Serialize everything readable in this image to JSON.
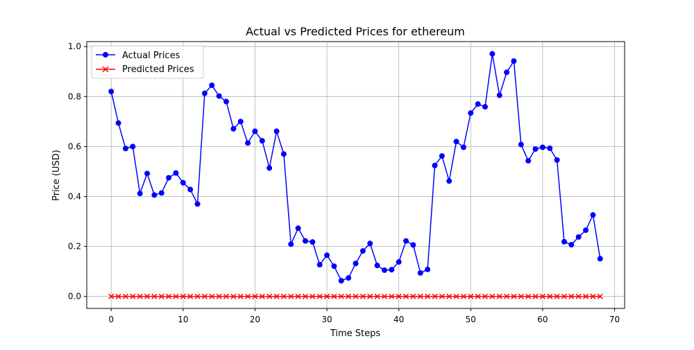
{
  "chart_data": {
    "type": "line",
    "title": "Actual vs Predicted Prices for ethereum",
    "xlabel": "Time Steps",
    "ylabel": "Price (USD)",
    "xlim": [
      -3.4,
      71.4
    ],
    "ylim": [
      -0.048,
      1.02
    ],
    "xticks": [
      0,
      10,
      20,
      30,
      40,
      50,
      60,
      70
    ],
    "xtick_labels": [
      "0",
      "10",
      "20",
      "30",
      "40",
      "50",
      "60",
      "70"
    ],
    "yticks": [
      0.0,
      0.2,
      0.4,
      0.6,
      0.8,
      1.0
    ],
    "ytick_labels": [
      "0.0",
      "0.2",
      "0.4",
      "0.6",
      "0.8",
      "1.0"
    ],
    "grid": true,
    "legend_position": "top-left",
    "x": [
      0,
      1,
      2,
      3,
      4,
      5,
      6,
      7,
      8,
      9,
      10,
      11,
      12,
      13,
      14,
      15,
      16,
      17,
      18,
      19,
      20,
      21,
      22,
      23,
      24,
      25,
      26,
      27,
      28,
      29,
      30,
      31,
      32,
      33,
      34,
      35,
      36,
      37,
      38,
      39,
      40,
      41,
      42,
      43,
      44,
      45,
      46,
      47,
      48,
      49,
      50,
      51,
      52,
      53,
      54,
      55,
      56,
      57,
      58,
      59,
      60,
      61,
      62,
      63,
      64,
      65,
      66,
      67,
      68
    ],
    "series": [
      {
        "name": "Actual Prices",
        "color": "#0000ff",
        "marker": "circle",
        "values": [
          0.82,
          0.694,
          0.592,
          0.6,
          0.412,
          0.492,
          0.406,
          0.414,
          0.475,
          0.494,
          0.455,
          0.428,
          0.37,
          0.813,
          0.845,
          0.802,
          0.78,
          0.671,
          0.7,
          0.614,
          0.661,
          0.623,
          0.514,
          0.661,
          0.57,
          0.209,
          0.273,
          0.222,
          0.218,
          0.127,
          0.165,
          0.121,
          0.063,
          0.074,
          0.132,
          0.182,
          0.212,
          0.124,
          0.105,
          0.107,
          0.138,
          0.222,
          0.206,
          0.094,
          0.108,
          0.524,
          0.562,
          0.462,
          0.62,
          0.597,
          0.734,
          0.77,
          0.759,
          0.971,
          0.805,
          0.897,
          0.942,
          0.608,
          0.543,
          0.59,
          0.597,
          0.593,
          0.546,
          0.219,
          0.207,
          0.238,
          0.265,
          0.326,
          0.151
        ]
      },
      {
        "name": "Predicted Prices",
        "color": "#ff0000",
        "marker": "x",
        "values": [
          0,
          0,
          0,
          0,
          0,
          0,
          0,
          0,
          0,
          0,
          0,
          0,
          0,
          0,
          0,
          0,
          0,
          0,
          0,
          0,
          0,
          0,
          0,
          0,
          0,
          0,
          0,
          0,
          0,
          0,
          0,
          0,
          0,
          0,
          0,
          0,
          0,
          0,
          0,
          0,
          0,
          0,
          0,
          0,
          0,
          0,
          0,
          0,
          0,
          0,
          0,
          0,
          0,
          0,
          0,
          0,
          0,
          0,
          0,
          0,
          0,
          0,
          0,
          0,
          0,
          0,
          0,
          0,
          0
        ]
      }
    ]
  }
}
